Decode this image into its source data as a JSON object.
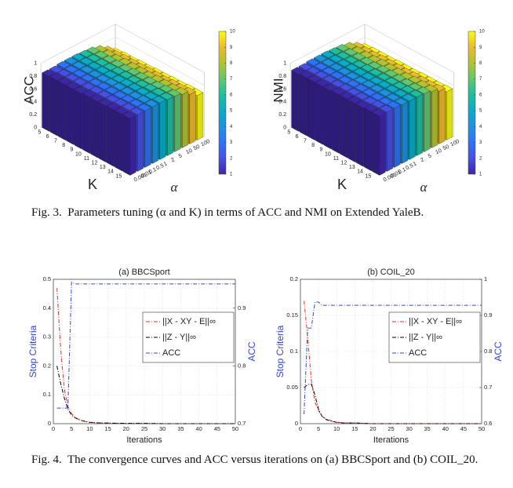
{
  "chart_data": [
    {
      "type": "bar3d",
      "zlabel": "ACC",
      "xlabel": "K",
      "ylabel": "α",
      "x": [
        5,
        6,
        7,
        8,
        9,
        10,
        11,
        12,
        13,
        14,
        15
      ],
      "y": [
        "0.001",
        "0.01",
        "0.1",
        "0.5",
        "1",
        "2",
        "5",
        "10",
        "50",
        "100"
      ],
      "values": [
        [
          0.85,
          0.85,
          0.86,
          0.86,
          0.86,
          0.85,
          0.84,
          0.8,
          0.73,
          0.64
        ],
        [
          0.86,
          0.86,
          0.86,
          0.86,
          0.86,
          0.85,
          0.84,
          0.8,
          0.73,
          0.65
        ],
        [
          0.86,
          0.86,
          0.86,
          0.86,
          0.86,
          0.85,
          0.84,
          0.8,
          0.74,
          0.65
        ],
        [
          0.86,
          0.86,
          0.86,
          0.86,
          0.86,
          0.85,
          0.84,
          0.81,
          0.74,
          0.66
        ],
        [
          0.86,
          0.86,
          0.86,
          0.86,
          0.86,
          0.86,
          0.84,
          0.81,
          0.74,
          0.66
        ],
        [
          0.87,
          0.87,
          0.87,
          0.87,
          0.86,
          0.86,
          0.85,
          0.81,
          0.75,
          0.67
        ],
        [
          0.87,
          0.87,
          0.87,
          0.87,
          0.87,
          0.86,
          0.85,
          0.81,
          0.75,
          0.67
        ],
        [
          0.87,
          0.87,
          0.87,
          0.87,
          0.87,
          0.86,
          0.85,
          0.82,
          0.75,
          0.68
        ],
        [
          0.88,
          0.88,
          0.88,
          0.87,
          0.87,
          0.87,
          0.85,
          0.82,
          0.76,
          0.68
        ],
        [
          0.88,
          0.88,
          0.88,
          0.88,
          0.87,
          0.87,
          0.86,
          0.82,
          0.76,
          0.69
        ],
        [
          0.88,
          0.88,
          0.88,
          0.88,
          0.88,
          0.87,
          0.86,
          0.83,
          0.77,
          0.69
        ]
      ],
      "zlim": [
        0,
        1
      ],
      "zticks": [
        0,
        0.2,
        0.4,
        0.6,
        0.8,
        1
      ],
      "colormap": [
        "#3e26a8",
        "#4750e4",
        "#2f72f8",
        "#1e92e0",
        "#0bacca",
        "#1ebea0",
        "#62c76e",
        "#b2c32f",
        "#ecba2d",
        "#f9fb15"
      ],
      "colorbar": {
        "lim": [
          1,
          10
        ],
        "ticks": [
          1,
          2,
          3,
          4,
          5,
          6,
          7,
          8,
          9,
          10
        ]
      }
    },
    {
      "type": "bar3d",
      "zlabel": "NMI",
      "xlabel": "K",
      "ylabel": "α",
      "x": [
        5,
        6,
        7,
        8,
        9,
        10,
        11,
        12,
        13,
        14,
        15
      ],
      "y": [
        "0.001",
        "0.01",
        "0.1",
        "0.5",
        "1",
        "2",
        "5",
        "10",
        "50",
        "100"
      ],
      "values": [
        [
          0.89,
          0.89,
          0.9,
          0.9,
          0.9,
          0.89,
          0.88,
          0.85,
          0.79,
          0.71
        ],
        [
          0.9,
          0.9,
          0.9,
          0.9,
          0.9,
          0.89,
          0.88,
          0.85,
          0.79,
          0.72
        ],
        [
          0.9,
          0.9,
          0.9,
          0.9,
          0.9,
          0.89,
          0.88,
          0.85,
          0.79,
          0.72
        ],
        [
          0.9,
          0.9,
          0.9,
          0.9,
          0.9,
          0.89,
          0.88,
          0.85,
          0.8,
          0.72
        ],
        [
          0.9,
          0.9,
          0.9,
          0.9,
          0.9,
          0.9,
          0.88,
          0.86,
          0.8,
          0.73
        ],
        [
          0.91,
          0.91,
          0.91,
          0.9,
          0.9,
          0.9,
          0.89,
          0.86,
          0.8,
          0.73
        ],
        [
          0.91,
          0.91,
          0.91,
          0.91,
          0.9,
          0.9,
          0.89,
          0.86,
          0.8,
          0.73
        ],
        [
          0.91,
          0.91,
          0.91,
          0.91,
          0.91,
          0.9,
          0.89,
          0.86,
          0.81,
          0.74
        ],
        [
          0.91,
          0.91,
          0.91,
          0.91,
          0.91,
          0.9,
          0.89,
          0.87,
          0.81,
          0.74
        ],
        [
          0.92,
          0.92,
          0.91,
          0.91,
          0.91,
          0.91,
          0.89,
          0.87,
          0.81,
          0.74
        ],
        [
          0.92,
          0.92,
          0.92,
          0.91,
          0.91,
          0.91,
          0.9,
          0.87,
          0.82,
          0.75
        ]
      ],
      "zlim": [
        0,
        1
      ],
      "zticks": [
        0,
        0.2,
        0.4,
        0.6,
        0.8,
        1
      ],
      "colormap": [
        "#3e26a8",
        "#4750e4",
        "#2f72f8",
        "#1e92e0",
        "#0bacca",
        "#1ebea0",
        "#62c76e",
        "#b2c32f",
        "#ecba2d",
        "#f9fb15"
      ],
      "colorbar": {
        "lim": [
          1,
          10
        ],
        "ticks": [
          1,
          2,
          3,
          4,
          5,
          6,
          7,
          8,
          9,
          10
        ]
      }
    },
    {
      "type": "line",
      "title": "(a) BBCSport",
      "xlabel": "Iterations",
      "ylabel": "Stop Criteria",
      "y2label": "ACC",
      "x": [
        1,
        2,
        3,
        4,
        5,
        6,
        7,
        8,
        9,
        10,
        12,
        15,
        20,
        25,
        30,
        35,
        40,
        45,
        50
      ],
      "xlim": [
        0,
        50
      ],
      "xticks": [
        0,
        5,
        10,
        15,
        20,
        25,
        30,
        35,
        40,
        45,
        50
      ],
      "ylim": [
        0,
        0.5
      ],
      "yticks": [
        0,
        0.1,
        0.2,
        0.3,
        0.4,
        0.5
      ],
      "y2lim": [
        0.7,
        0.95
      ],
      "y2ticks": [
        0.7,
        0.8,
        0.9
      ],
      "grid": true,
      "legend": "right",
      "series": [
        {
          "name": "||X - XY - E||∞",
          "color": "#e0302a",
          "linestyle": "-.",
          "values": [
            0.47,
            0.26,
            0.12,
            0.06,
            0.035,
            0.022,
            0.015,
            0.01,
            0.007,
            0.005,
            0.003,
            0.002,
            0.001,
            0.001,
            0,
            0,
            0,
            0,
            0
          ]
        },
        {
          "name": "||Z - Y||∞",
          "color": "#000000",
          "linestyle": "-.",
          "values": [
            0.2,
            0.14,
            0.09,
            0.05,
            0.03,
            0.02,
            0.014,
            0.01,
            0.007,
            0.005,
            0.003,
            0.002,
            0.001,
            0.001,
            0,
            0,
            0,
            0,
            0
          ]
        },
        {
          "name": "ACC",
          "color": "#3344dd",
          "linestyle": "-.",
          "axis": "y2",
          "values": [
            0.727,
            0.727,
            0.727,
            0.727,
            0.945,
            0.942,
            0.942,
            0.942,
            0.942,
            0.942,
            0.942,
            0.942,
            0.942,
            0.942,
            0.942,
            0.942,
            0.942,
            0.942,
            0.942
          ]
        }
      ]
    },
    {
      "type": "line",
      "title": "(b) COIL_20",
      "xlabel": "Iterations",
      "ylabel": "Stop Criteria",
      "y2label": "ACC",
      "x": [
        1,
        2,
        3,
        4,
        5,
        6,
        7,
        8,
        9,
        10,
        12,
        15,
        20,
        25,
        30,
        35,
        40,
        45,
        50
      ],
      "xlim": [
        0,
        50
      ],
      "xticks": [
        0,
        5,
        10,
        15,
        20,
        25,
        30,
        35,
        40,
        45,
        50
      ],
      "ylim": [
        0,
        0.2
      ],
      "yticks": [
        0,
        0.05,
        0.1,
        0.15,
        0.2
      ],
      "y2lim": [
        0.6,
        1
      ],
      "y2ticks": [
        0.6,
        0.7,
        0.8,
        0.9,
        1
      ],
      "grid": true,
      "legend": "right",
      "series": [
        {
          "name": "||X - XY - E||∞",
          "color": "#e0302a",
          "linestyle": "-.",
          "values": [
            0.17,
            0.12,
            0.06,
            0.03,
            0.018,
            0.01,
            0.007,
            0.005,
            0.003,
            0.002,
            0.001,
            0.001,
            0,
            0,
            0,
            0,
            0,
            0,
            0
          ]
        },
        {
          "name": "||Z - Y||∞",
          "color": "#000000",
          "linestyle": "-.",
          "values": [
            0.05,
            0.054,
            0.055,
            0.04,
            0.02,
            0.01,
            0.006,
            0.004,
            0.003,
            0.002,
            0.001,
            0.001,
            0,
            0,
            0,
            0,
            0,
            0,
            0
          ]
        },
        {
          "name": "ACC",
          "color": "#3344dd",
          "linestyle": "-.",
          "axis": "y2",
          "values": [
            0.626,
            0.865,
            0.865,
            0.937,
            0.937,
            0.928,
            0.928,
            0.928,
            0.928,
            0.928,
            0.928,
            0.928,
            0.928,
            0.928,
            0.928,
            0.928,
            0.928,
            0.928,
            0.928
          ]
        }
      ]
    }
  ],
  "captions": [
    "Fig. 3.  Parameters tuning (α and K) in terms of ACC and NMI on Extended YaleB.",
    "Fig. 4.  The convergence curves and ACC versus iterations on (a) BBCSport and (b) COIL_20."
  ]
}
